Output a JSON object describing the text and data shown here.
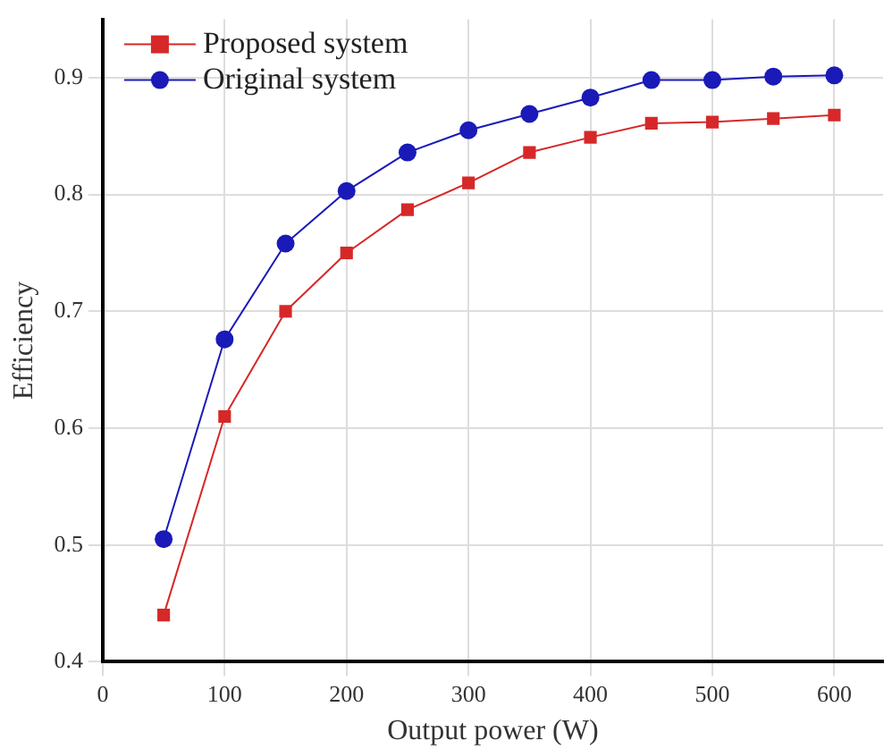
{
  "chart_data": {
    "type": "line",
    "xlabel": "Output power (W)",
    "ylabel": "Efficiency",
    "x": [
      50,
      100,
      150,
      200,
      250,
      300,
      350,
      400,
      450,
      500,
      550,
      600
    ],
    "series": [
      {
        "name": "Proposed system",
        "color": "#d62828",
        "marker": "square",
        "values": [
          0.44,
          0.61,
          0.7,
          0.75,
          0.787,
          0.81,
          0.836,
          0.849,
          0.861,
          0.862,
          0.865,
          0.868
        ]
      },
      {
        "name": "Original system",
        "color": "#1a1ab8",
        "marker": "circle",
        "values": [
          0.505,
          0.676,
          0.758,
          0.803,
          0.836,
          0.855,
          0.869,
          0.883,
          0.898,
          0.898,
          0.901,
          0.902
        ]
      }
    ],
    "xlim": [
      0,
      640
    ],
    "xticks": [
      0,
      100,
      200,
      300,
      400,
      500,
      600
    ],
    "ylim": [
      0.4,
      0.95
    ],
    "yticks": [
      0.4,
      0.5,
      0.6,
      0.7,
      0.8,
      0.9
    ],
    "grid": true,
    "legend": "top left",
    "line_style": "solid"
  }
}
